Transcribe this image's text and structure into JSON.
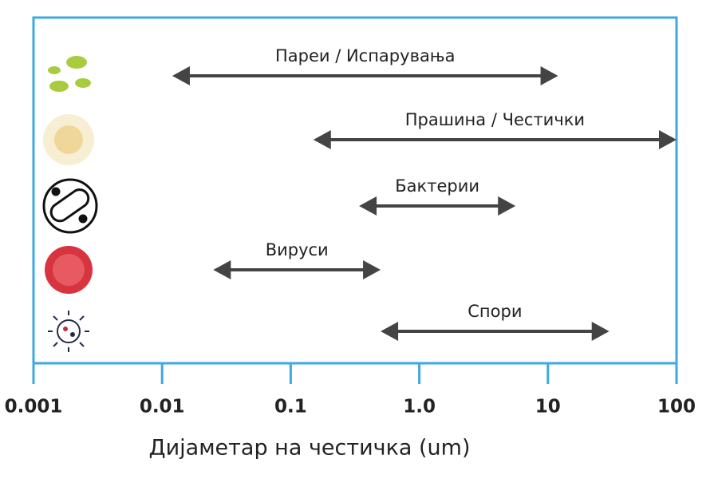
{
  "chart_data": {
    "type": "range",
    "categories": [
      "Пареи / Испарувања",
      "Прашина / Честички",
      "Бактерии",
      "Вируси",
      "Спори"
    ],
    "values": [
      [
        0.012,
        12
      ],
      [
        0.15,
        100
      ],
      [
        0.34,
        5.6
      ],
      [
        0.025,
        0.5
      ],
      [
        0.5,
        30
      ]
    ],
    "color": "#444444",
    "xlabel": "Дијаметар на честичка (um)",
    "xscale": "log",
    "xlim": [
      0.001,
      100
    ],
    "xticks": [
      0.001,
      0.01,
      0.1,
      {
        "value": 1,
        "label": "1.0"
      },
      10,
      100
    ],
    "frame_color": "#3ea8e0"
  }
}
